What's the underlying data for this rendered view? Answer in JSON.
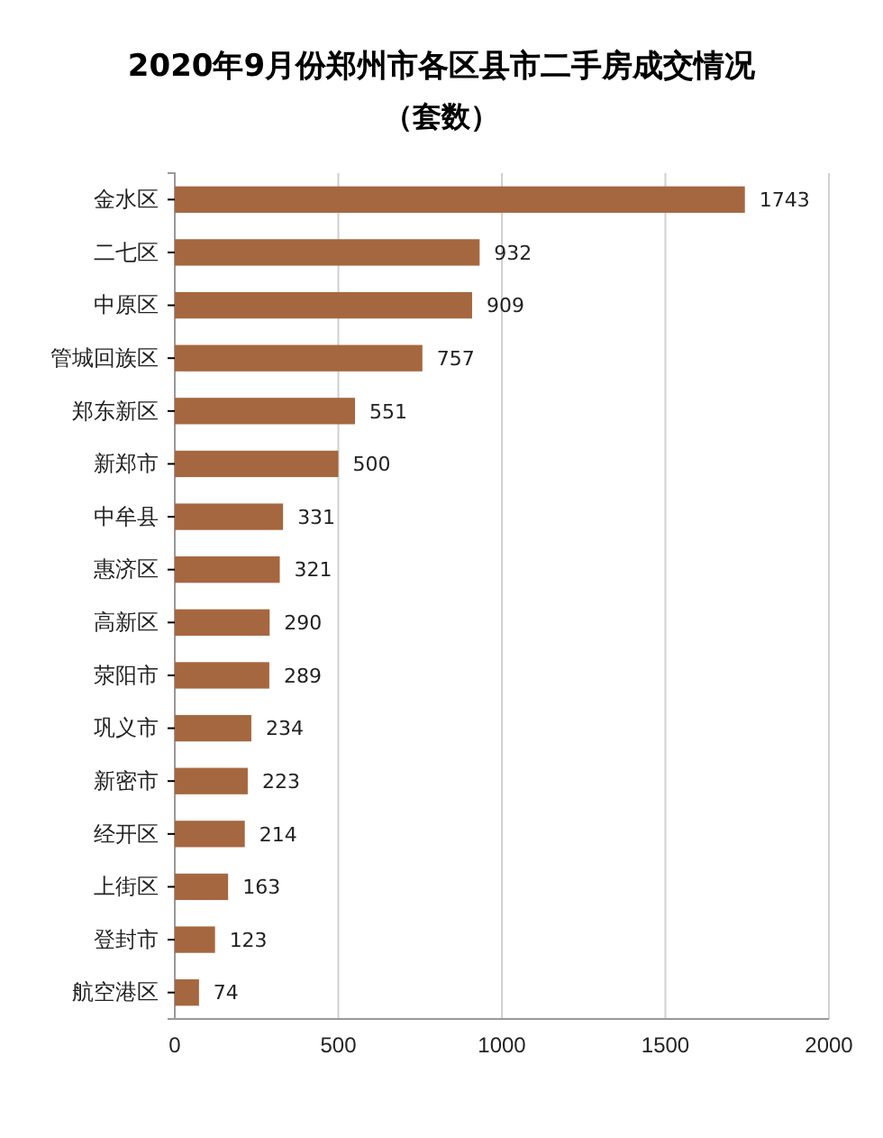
{
  "chart_data": {
    "type": "bar",
    "orientation": "horizontal",
    "title": "2020年9月份郑州市各区县市二手房成交情况",
    "subtitle": "（套数）",
    "categories": [
      "金水区",
      "二七区",
      "中原区",
      "管城回族区",
      "郑东新区",
      "新郑市",
      "中牟县",
      "惠济区",
      "高新区",
      "荥阳市",
      "巩义市",
      "新密市",
      "经开区",
      "上街区",
      "登封市",
      "航空港区"
    ],
    "values": [
      1743,
      932,
      909,
      757,
      551,
      500,
      331,
      321,
      290,
      289,
      234,
      223,
      214,
      163,
      123,
      74
    ],
    "color": "#a5673f",
    "xlim": [
      0,
      2000
    ],
    "xticks": [
      0,
      500,
      1000,
      1500,
      2000
    ],
    "grid": "x",
    "data_labels": true
  }
}
